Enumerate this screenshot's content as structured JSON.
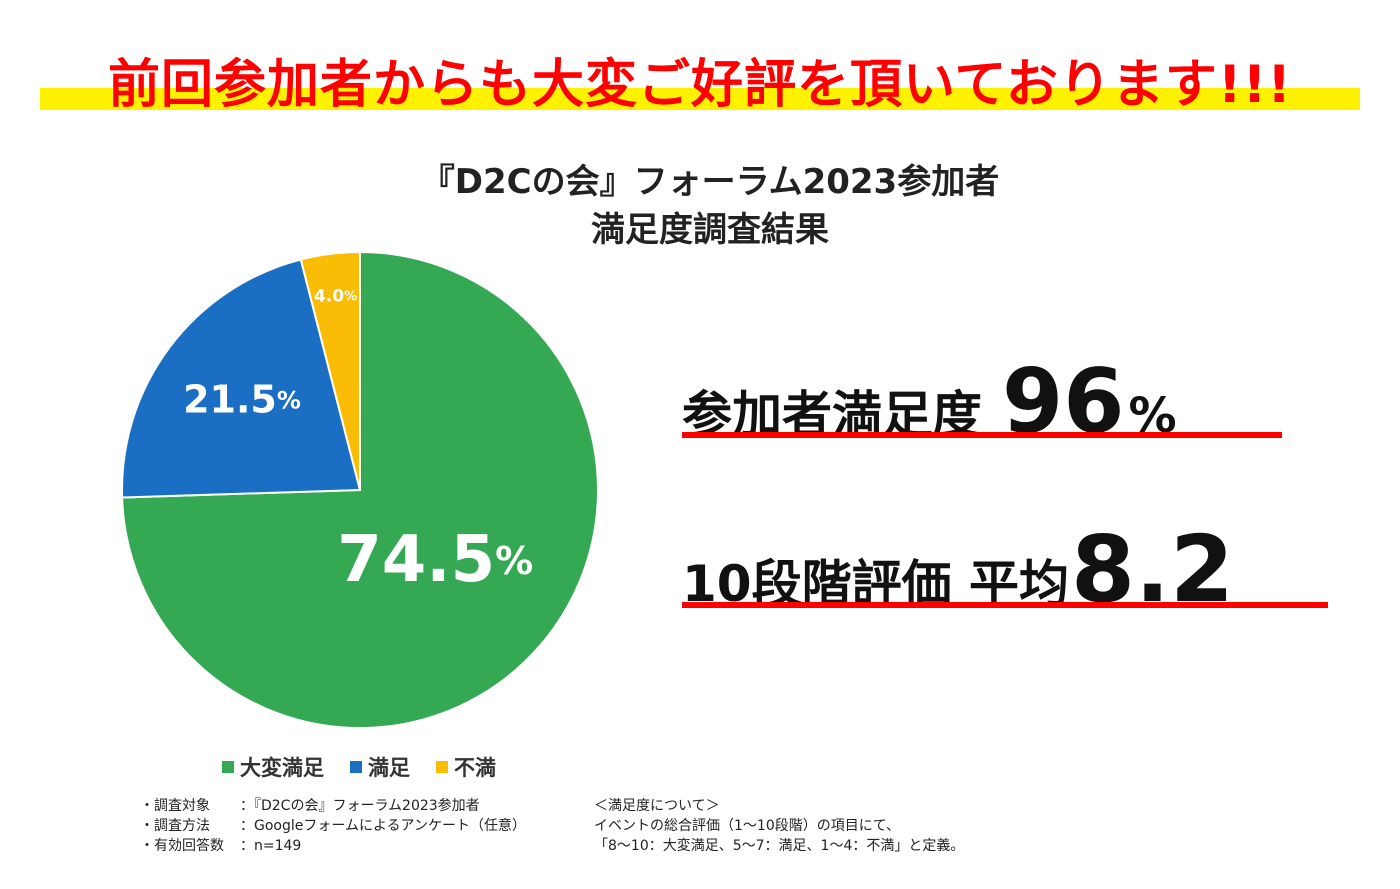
{
  "headline": "前回参加者からも大変ご好評を頂いております!!!",
  "chart_data": {
    "type": "pie",
    "title": [
      "『D2Cの会』フォーラム2023参加者",
      "満足度調査結果"
    ],
    "categories": [
      "大変満足",
      "満足",
      "不満"
    ],
    "values": [
      74.5,
      21.5,
      4.0
    ],
    "labels": [
      "74.5",
      "21.5",
      "4.0"
    ],
    "unit": "%",
    "colors": [
      "#34a853",
      "#1a6fc4",
      "#fbbc05"
    ],
    "legend_position": "bottom"
  },
  "stats": [
    {
      "label": "参加者満足度",
      "value": "96",
      "unit": "%"
    },
    {
      "label": "10段階評価 平均",
      "value": "8.2",
      "unit": ""
    }
  ],
  "notes_left": [
    {
      "key": "・調査対象",
      "value": "：『D2Cの会』フォーラム2023参加者"
    },
    {
      "key": "・調査方法",
      "value": "：Googleフォームによるアンケート（任意）"
    },
    {
      "key": "・有効回答数",
      "value": "：n=149"
    }
  ],
  "notes_right": [
    "＜満足度について＞",
    "イベントの総合評価（1〜10段階）の項目にて、",
    "「8〜10：大変満足、5〜7：満足、1〜4：不満」と定義。"
  ]
}
